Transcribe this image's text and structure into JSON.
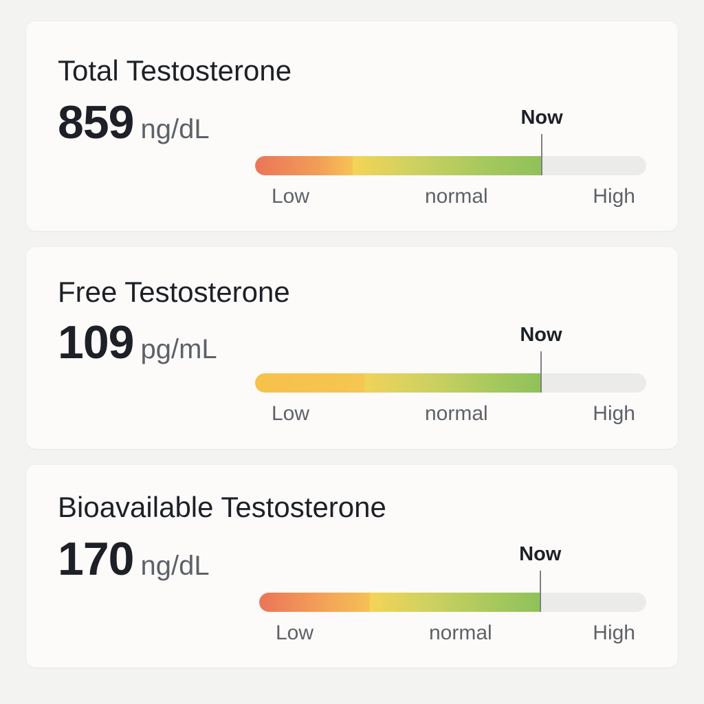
{
  "colors": {
    "page_background": "#f3f3f2",
    "card_background": "#fcfbfa",
    "low": "#ea7558",
    "borderline": "#f6c14c",
    "normal": "#8fc25a",
    "track": "#ebebea"
  },
  "scale": {
    "low_label": "Low",
    "normal_label": "normal",
    "high_label": "High",
    "marker_label": "Now"
  },
  "cards": [
    {
      "title": "Total Testosterone",
      "value": "859",
      "unit": "ng/dL",
      "level_fraction": 0.733
    },
    {
      "title": "Free Testosterone",
      "value": "109",
      "unit": "pg/mL",
      "level_fraction": 0.731
    },
    {
      "title": "Bioavailable Testosterone",
      "value": "170",
      "unit": "ng/dL",
      "level_fraction": 0.726
    }
  ]
}
